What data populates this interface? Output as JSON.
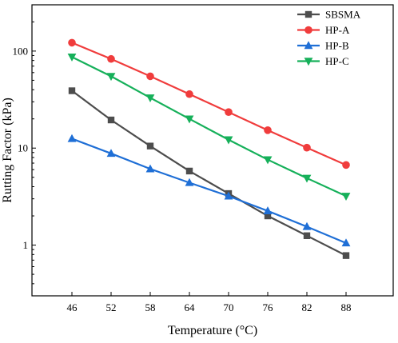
{
  "chart_data": {
    "type": "line",
    "title": "",
    "xlabel": "Temperature (°C)",
    "ylabel": "Rutting Factor (kPa)",
    "x": [
      46,
      52,
      58,
      64,
      70,
      76,
      82,
      88
    ],
    "y_scale": "log",
    "ylim": [
      0.3,
      300
    ],
    "y_ticks": [
      1,
      10,
      100
    ],
    "y_tick_labels": [
      "1",
      "10",
      "100"
    ],
    "grid": false,
    "legend_position": "top-right",
    "series": [
      {
        "name": "SBSMA",
        "color": "#4d4d4d",
        "marker": "square",
        "values": [
          39,
          19.5,
          10.5,
          5.8,
          3.4,
          2.0,
          1.25,
          0.78
        ]
      },
      {
        "name": "HP-A",
        "color": "#f03c3c",
        "marker": "circle",
        "values": [
          122,
          83,
          55,
          36,
          23.5,
          15.3,
          10.1,
          6.7
        ]
      },
      {
        "name": "HP-B",
        "color": "#1f6fd6",
        "marker": "triangle-up",
        "values": [
          12.5,
          8.8,
          6.1,
          4.4,
          3.2,
          2.25,
          1.55,
          1.05
        ]
      },
      {
        "name": "HP-C",
        "color": "#16b05a",
        "marker": "triangle-down",
        "values": [
          87,
          55,
          33,
          20,
          12.2,
          7.6,
          4.9,
          3.2
        ]
      }
    ]
  }
}
